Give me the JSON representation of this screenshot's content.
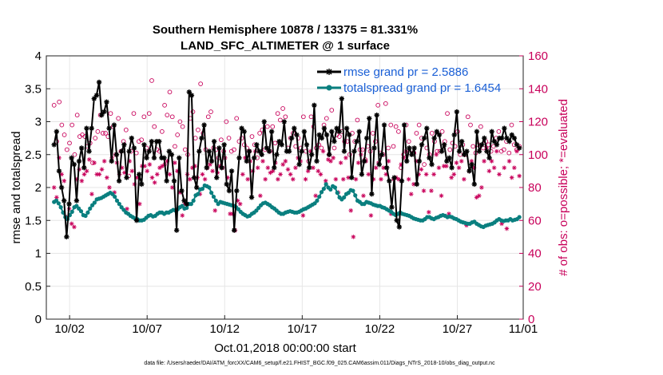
{
  "chart_data": {
    "type": "line",
    "title": "Southern Hemisphere 10878 / 13375 = 81.331%",
    "subtitle": "LAND_SFC_ALTIMETER @ 1 surface",
    "xlabel": "Oct.01,2018 00:00:00 start",
    "ylabel": "rmse and totalspread",
    "ylabel_right": "# of obs: o=possible; *=evaluated",
    "footnote": "data file: /Users/raeder/DAI/ATM_forcXX/CAM6_setup/f.e21.FHIST_BGC.f09_025.CAM6assim.011/Diags_NTrS_2018-10/obs_diag_output.nc",
    "x_range": [
      0.5,
      31.25
    ],
    "x_ticks": [
      {
        "x": 2,
        "label": "10/02"
      },
      {
        "x": 7,
        "label": "10/07"
      },
      {
        "x": 12,
        "label": "10/12"
      },
      {
        "x": 17,
        "label": "10/17"
      },
      {
        "x": 22,
        "label": "10/22"
      },
      {
        "x": 27,
        "label": "10/27"
      },
      {
        "x": 32,
        "label": "11/01"
      }
    ],
    "ylim": [
      0,
      4
    ],
    "y_ticks": [
      "0",
      "0.5",
      "1",
      "1.5",
      "2",
      "2.5",
      "3",
      "3.5",
      "4"
    ],
    "ylim_right": [
      0,
      160
    ],
    "y_ticks_right": [
      "0",
      "20",
      "40",
      "60",
      "80",
      "100",
      "120",
      "140",
      "160"
    ],
    "grid": true,
    "legend_position": "top-right",
    "colors": {
      "rmse": "#000000",
      "spread": "#0a7f7f",
      "obs": "#c8005a",
      "legend_text": "#1a5fd6"
    },
    "series": [
      {
        "name": "rmse grand pr = 2.5886",
        "axis": "left",
        "marker": "asterisk",
        "values": [
          2.65,
          2.85,
          2.25,
          2.0,
          1.8,
          1.25,
          1.75,
          2.45,
          2.35,
          1.8,
          2.4,
          2.6,
          2.3,
          2.9,
          2.55,
          2.9,
          3.35,
          3.4,
          3.6,
          3.1,
          3.15,
          3.3,
          2.9,
          2.4,
          2.95,
          2.5,
          2.1,
          2.55,
          2.65,
          2.15,
          2.55,
          2.75,
          2.6,
          1.5,
          2.2,
          2.05,
          2.65,
          2.45,
          2.55,
          2.7,
          2.45,
          2.7,
          2.7,
          2.45,
          2.45,
          2.1,
          2.55,
          2.5,
          2.1,
          1.35,
          2.45,
          1.95,
          1.8,
          1.75,
          3.45,
          3.4,
          2.15,
          2.0,
          2.55,
          2.75,
          2.95,
          2.3,
          2.55,
          2.4,
          2.7,
          2.15,
          2.6,
          2.3,
          2.65,
          2.05,
          1.95,
          2.25,
          1.35,
          1.95,
          2.45,
          2.9,
          2.85,
          2.4,
          2.55,
          1.85,
          2.45,
          2.65,
          2.55,
          2.5,
          3.0,
          2.6,
          2.55,
          2.85,
          2.3,
          2.5,
          2.7,
          2.65,
          3.0,
          2.55,
          2.55,
          2.75,
          2.9,
          2.8,
          2.35,
          2.55,
          2.85,
          2.65,
          2.3,
          2.5,
          3.25,
          2.4,
          2.8,
          2.75,
          2.9,
          2.8,
          2.5,
          2.85,
          2.7,
          2.9,
          2.85,
          3.35,
          2.55,
          2.9,
          2.8,
          2.15,
          2.55,
          2.7,
          2.85,
          2.2,
          2.4,
          2.75,
          3.05,
          1.9,
          2.6,
          3.1,
          2.35,
          2.5,
          2.95,
          2.3,
          2.1,
          1.7,
          2.15,
          1.5,
          1.4,
          2.1,
          2.95,
          2.4,
          2.6,
          2.5,
          2.6,
          2.05,
          2.4,
          2.65,
          2.75,
          2.9,
          2.45,
          2.35,
          2.75,
          2.85,
          2.8,
          2.55,
          2.65,
          2.4,
          2.45,
          2.3,
          2.8,
          3.15,
          2.55,
          2.7,
          2.5,
          2.55,
          2.25,
          2.35,
          2.05,
          2.85,
          2.55,
          2.65,
          2.75,
          2.55,
          2.45,
          2.85,
          2.7,
          2.65,
          2.75,
          2.75,
          2.9,
          2.75,
          2.7,
          2.8,
          2.75,
          2.65,
          2.6
        ]
      },
      {
        "name": "totalspread grand pr = 1.6454",
        "axis": "left",
        "marker": "circle",
        "values": [
          1.78,
          1.8,
          1.76,
          1.7,
          1.62,
          1.55,
          1.52,
          1.58,
          1.63,
          1.7,
          1.72,
          1.68,
          1.64,
          1.58,
          1.57,
          1.62,
          1.68,
          1.73,
          1.77,
          1.82,
          1.83,
          1.84,
          1.86,
          1.88,
          1.9,
          1.92,
          1.9,
          1.86,
          1.8,
          1.75,
          1.7,
          1.66,
          1.62,
          1.6,
          1.57,
          1.55,
          1.53,
          1.52,
          1.5,
          1.5,
          1.51,
          1.54,
          1.57,
          1.58,
          1.56,
          1.57,
          1.6,
          1.62,
          1.62,
          1.6,
          1.62,
          1.62,
          1.64,
          1.66,
          1.65,
          1.67,
          1.7,
          1.72,
          1.68,
          1.69,
          1.75,
          1.75,
          1.8,
          1.88,
          1.9,
          1.97,
          1.98,
          2.03,
          2.02,
          2.0,
          1.92,
          1.86,
          1.8,
          1.75,
          1.78,
          1.77,
          1.76,
          1.75,
          1.74,
          1.73,
          1.72,
          1.7,
          1.67,
          1.63,
          1.6,
          1.58,
          1.56,
          1.57,
          1.6,
          1.62,
          1.65,
          1.69,
          1.73,
          1.76,
          1.77,
          1.75,
          1.73,
          1.7,
          1.68,
          1.65,
          1.62,
          1.6,
          1.6,
          1.62,
          1.63,
          1.64,
          1.63,
          1.62,
          1.62,
          1.63,
          1.65,
          1.67,
          1.68,
          1.7,
          1.72,
          1.74,
          1.76,
          1.8,
          1.86,
          1.93,
          1.98,
          2.05,
          2.0,
          1.97,
          2.02,
          2.0,
          1.92,
          1.85,
          1.82,
          1.85,
          1.9,
          1.92,
          1.96,
          1.95,
          1.88,
          1.8,
          1.78,
          1.75,
          1.75,
          1.78,
          1.77,
          1.76,
          1.74,
          1.73,
          1.72,
          1.72,
          1.7,
          1.69,
          1.67,
          1.65,
          1.63,
          1.6,
          1.58,
          1.6,
          1.62,
          1.6,
          1.59,
          1.58,
          1.57,
          1.55,
          1.53,
          1.52,
          1.51,
          1.5,
          1.5,
          1.52,
          1.55,
          1.55,
          1.53,
          1.52,
          1.54,
          1.55,
          1.57,
          1.58,
          1.57,
          1.55,
          1.56,
          1.55,
          1.53,
          1.52,
          1.5,
          1.48,
          1.47,
          1.46,
          1.45,
          1.45,
          1.47,
          1.48,
          1.45,
          1.43,
          1.41,
          1.4,
          1.42,
          1.43,
          1.44,
          1.45,
          1.47,
          1.5,
          1.52,
          1.5,
          1.49,
          1.5,
          1.5,
          1.52,
          1.5,
          1.51,
          1.52,
          1.55
        ]
      },
      {
        "name": "obs possible",
        "axis": "right",
        "marker": "open-circle",
        "values": [
          130,
          108,
          132,
          118,
          112,
          103,
          107,
          118,
          100,
          124,
          111,
          112,
          111,
          105,
          107,
          95,
          110,
          114,
          124,
          113,
          113,
          111,
          125,
          117,
          100,
          122,
          102,
          108,
          115,
          87,
          102,
          125,
          101,
          108,
          109,
          123,
          104,
          125,
          145,
          117,
          103,
          102,
          114,
          130,
          124,
          138,
          123,
          105,
          112,
          120,
          117,
          103,
          100,
          122,
          126,
          110,
          115,
          143,
          113,
          103,
          123,
          126,
          104,
          103,
          98,
          109,
          102,
          120,
          110,
          102,
          103,
          122,
          108,
          110,
          106,
          104,
          102,
          111,
          106,
          98,
          113,
          115,
          103,
          117,
          102,
          117,
          107,
          125,
          121,
          128,
          123,
          104,
          110,
          113,
          105,
          110,
          104,
          123,
          102,
          96,
          123,
          117,
          104,
          106,
          104,
          118,
          122,
          100,
          127,
          104,
          112,
          111,
          114,
          108,
          108,
          100,
          113,
          108,
          121,
          103,
          103,
          97,
          105,
          102,
          113,
          108,
          130,
          101,
          100,
          131,
          104,
          118,
          105,
          117,
          114,
          92,
          100,
          118,
          108,
          103,
          101,
          113,
          118,
          110,
          94,
          104,
          100,
          113,
          108,
          102,
          102,
          114,
          108,
          125,
          103,
          107,
          105,
          114,
          100,
          106,
          100,
          123,
          118,
          105,
          101,
          106,
          117,
          104,
          108,
          106,
          102,
          105,
          110,
          114,
          102,
          103,
          108,
          101,
          118,
          106,
          103,
          105
        ]
      },
      {
        "name": "obs evaluated",
        "axis": "right",
        "marker": "asterisk",
        "values": [
          80,
          74,
          98,
          88,
          84,
          62,
          67,
          58,
          56,
          85,
          91,
          84,
          88,
          90,
          97,
          76,
          95,
          88,
          88,
          91,
          96,
          86,
          80,
          98,
          77,
          95,
          88,
          92,
          89,
          67,
          96,
          90,
          82,
          86,
          70,
          93,
          93,
          90,
          94,
          86,
          83,
          88,
          92,
          93,
          94,
          96,
          88,
          80,
          95,
          90,
          77,
          63,
          70,
          88,
          85,
          92,
          93,
          86,
          76,
          88,
          85,
          92,
          94,
          90,
          66,
          89,
          93,
          92,
          98,
          86,
          64,
          64,
          54,
          72,
          70,
          88,
          98,
          85,
          96,
          90,
          102,
          92,
          75,
          96,
          85,
          92,
          89,
          90,
          95,
          85,
          88,
          94,
          96,
          91,
          88,
          85,
          92,
          98,
          96,
          63,
          85,
          90,
          102,
          92,
          75,
          90,
          88,
          102,
          84,
          97,
          96,
          98,
          85,
          77,
          95,
          85,
          98,
          86,
          66,
          50,
          85,
          95,
          100,
          75,
          96,
          88,
          63,
          85,
          92,
          95,
          85,
          92,
          88,
          96,
          64,
          85,
          86,
          85,
          94,
          98,
          102,
          85,
          76,
          82,
          96,
          88,
          91,
          78,
          88,
          65,
          78,
          88,
          100,
          92,
          75,
          93,
          93,
          64,
          86,
          88,
          95,
          92,
          96,
          85,
          57,
          90,
          96,
          92,
          74,
          75,
          80,
          96,
          104,
          90,
          96,
          92,
          102,
          88,
          58,
          92,
          55,
          96,
          86,
          92,
          102,
          87
        ]
      }
    ]
  }
}
